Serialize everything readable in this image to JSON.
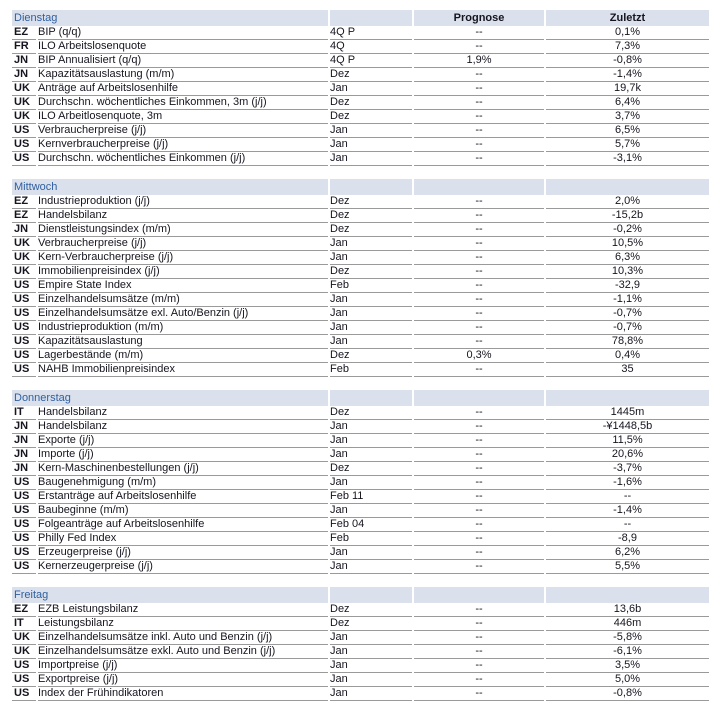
{
  "table": {
    "columns": {
      "prognose": "Prognose",
      "zuletzt": "Zuletzt"
    },
    "colors": {
      "band_bg": "#dae1ec",
      "day_text": "#2f5fa0",
      "row_line": "#9a9a9a",
      "text": "#15151f"
    },
    "sections": [
      {
        "day": "Dienstag",
        "rows": [
          [
            "EZ",
            "BIP (q/q)",
            "4Q P",
            "--",
            "0,1%"
          ],
          [
            "FR",
            "ILO Arbeitslosenquote",
            "4Q",
            "--",
            "7,3%"
          ],
          [
            "JN",
            "BIP Annualisiert (q/q)",
            "4Q P",
            "1,9%",
            "-0,8%"
          ],
          [
            "JN",
            "Kapazitätsauslastung (m/m)",
            "Dez",
            "--",
            "-1,4%"
          ],
          [
            "UK",
            "Anträge auf Arbeitslosenhilfe",
            "Jan",
            "--",
            "19,7k"
          ],
          [
            "UK",
            "Durchschn. wöchentliches Einkommen, 3m (j/j)",
            "Dez",
            "--",
            "6,4%"
          ],
          [
            "UK",
            "ILO Arbeitlosenquote, 3m",
            "Dez",
            "--",
            "3,7%"
          ],
          [
            "US",
            "Verbraucherpreise (j/j)",
            "Jan",
            "--",
            "6,5%"
          ],
          [
            "US",
            "Kernverbraucherpreise (j/j)",
            "Jan",
            "--",
            "5,7%"
          ],
          [
            "US",
            "Durchschn. wöchentliches Einkommen (j/j)",
            "Jan",
            "--",
            "-3,1%"
          ]
        ]
      },
      {
        "day": "Mittwoch",
        "rows": [
          [
            "EZ",
            "Industrieproduktion (j/j)",
            "Dez",
            "--",
            "2,0%"
          ],
          [
            "EZ",
            "Handelsbilanz",
            "Dez",
            "--",
            "-15,2b"
          ],
          [
            "JN",
            "Dienstleistungsindex (m/m)",
            "Dez",
            "--",
            "-0,2%"
          ],
          [
            "UK",
            "Verbraucherpreise (j/j)",
            "Jan",
            "--",
            "10,5%"
          ],
          [
            "UK",
            "Kern-Verbraucherpreise (j/j)",
            "Jan",
            "--",
            "6,3%"
          ],
          [
            "UK",
            "Immobilienpreisindex (j/j)",
            "Dez",
            "--",
            "10,3%"
          ],
          [
            "US",
            "Empire State Index",
            "Feb",
            "--",
            "-32,9"
          ],
          [
            "US",
            "Einzelhandelsumsätze (m/m)",
            "Jan",
            "--",
            "-1,1%"
          ],
          [
            "US",
            "Einzelhandelsumsätze exl. Auto/Benzin (j/j)",
            "Jan",
            "--",
            "-0,7%"
          ],
          [
            "US",
            "Industrieproduktion (m/m)",
            "Jan",
            "--",
            "-0,7%"
          ],
          [
            "US",
            "Kapazitätsauslastung",
            "Jan",
            "--",
            "78,8%"
          ],
          [
            "US",
            "Lagerbestände (m/m)",
            "Dez",
            "0,3%",
            "0,4%"
          ],
          [
            "US",
            "NAHB Immobilienpreisindex",
            "Feb",
            "--",
            "35"
          ]
        ]
      },
      {
        "day": "Donnerstag",
        "rows": [
          [
            "IT",
            "Handelsbilanz",
            "Dez",
            "--",
            "1445m"
          ],
          [
            "JN",
            "Handelsbilanz",
            "Jan",
            "--",
            "-¥1448,5b"
          ],
          [
            "JN",
            "Exporte (j/j)",
            "Jan",
            "--",
            "11,5%"
          ],
          [
            "JN",
            "Importe (j/j)",
            "Jan",
            "--",
            "20,6%"
          ],
          [
            "JN",
            "Kern-Maschinenbestellungen (j/j)",
            "Dez",
            "--",
            "-3,7%"
          ],
          [
            "US",
            "Baugenehmigung (m/m)",
            "Jan",
            "--",
            "-1,6%"
          ],
          [
            "US",
            "Erstanträge auf Arbeitslosenhilfe",
            "Feb 11",
            "--",
            "--"
          ],
          [
            "US",
            "Baubeginne (m/m)",
            "Jan",
            "--",
            "-1,4%"
          ],
          [
            "US",
            "Folgeanträge auf Arbeitslosenhilfe",
            "Feb 04",
            "--",
            "--"
          ],
          [
            "US",
            "Philly Fed Index",
            "Feb",
            "--",
            "-8,9"
          ],
          [
            "US",
            "Erzeugerpreise (j/j)",
            "Jan",
            "--",
            "6,2%"
          ],
          [
            "US",
            "Kernerzeugerpreise (j/j)",
            "Jan",
            "--",
            "5,5%"
          ]
        ]
      },
      {
        "day": "Freitag",
        "rows": [
          [
            "EZ",
            "EZB Leistungsbilanz",
            "Dez",
            "--",
            "13,6b"
          ],
          [
            "IT",
            "Leistungsbilanz",
            "Dez",
            "--",
            "446m"
          ],
          [
            "UK",
            "Einzelhandelsumsätze inkl. Auto und Benzin (j/j)",
            "Jan",
            "--",
            "-5,8%"
          ],
          [
            "UK",
            "Einzelhandelsumsätze exkl. Auto und Benzin (j/j)",
            "Jan",
            "--",
            "-6,1%"
          ],
          [
            "US",
            "Importpreise (j/j)",
            "Jan",
            "--",
            "3,5%"
          ],
          [
            "US",
            "Exportpreise (j/j)",
            "Jan",
            "--",
            "5,0%"
          ],
          [
            "US",
            "Index der Frühindikatoren",
            "Jan",
            "--",
            "-0,8%"
          ]
        ]
      }
    ]
  }
}
